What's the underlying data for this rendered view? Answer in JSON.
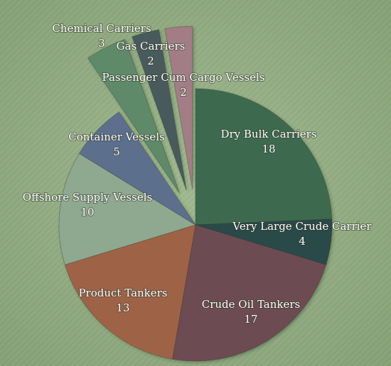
{
  "chart_data": {
    "type": "pie",
    "title": "",
    "slices": [
      {
        "label": "Dry Bulk Carriers",
        "value": 18,
        "color": "#3d6b4f"
      },
      {
        "label": "Very Large Crude Carrier",
        "value": 4,
        "color": "#2a4a49"
      },
      {
        "label": "Crude Oil Tankers",
        "value": 17,
        "color": "#6d4c53"
      },
      {
        "label": "Product Tankers",
        "value": 13,
        "color": "#9e6446"
      },
      {
        "label": "Offshore Supply Vessels",
        "value": 10,
        "color": "#8fa890"
      },
      {
        "label": "Container Vessels",
        "value": 5,
        "color": "#5c6f8e"
      },
      {
        "label": "Chemical Carriers",
        "value": 3,
        "color": "#5f8a6b"
      },
      {
        "label": "Gas Carriers",
        "value": 2,
        "color": "#4a5a5c"
      },
      {
        "label": "Passenger Cum Cargo Vessels",
        "value": 2,
        "color": "#a27d86"
      }
    ],
    "background_color": "#94ad84",
    "exploded_slices": [
      "Chemical Carriers",
      "Gas Carriers",
      "Passenger Cum Cargo Vessels"
    ]
  }
}
